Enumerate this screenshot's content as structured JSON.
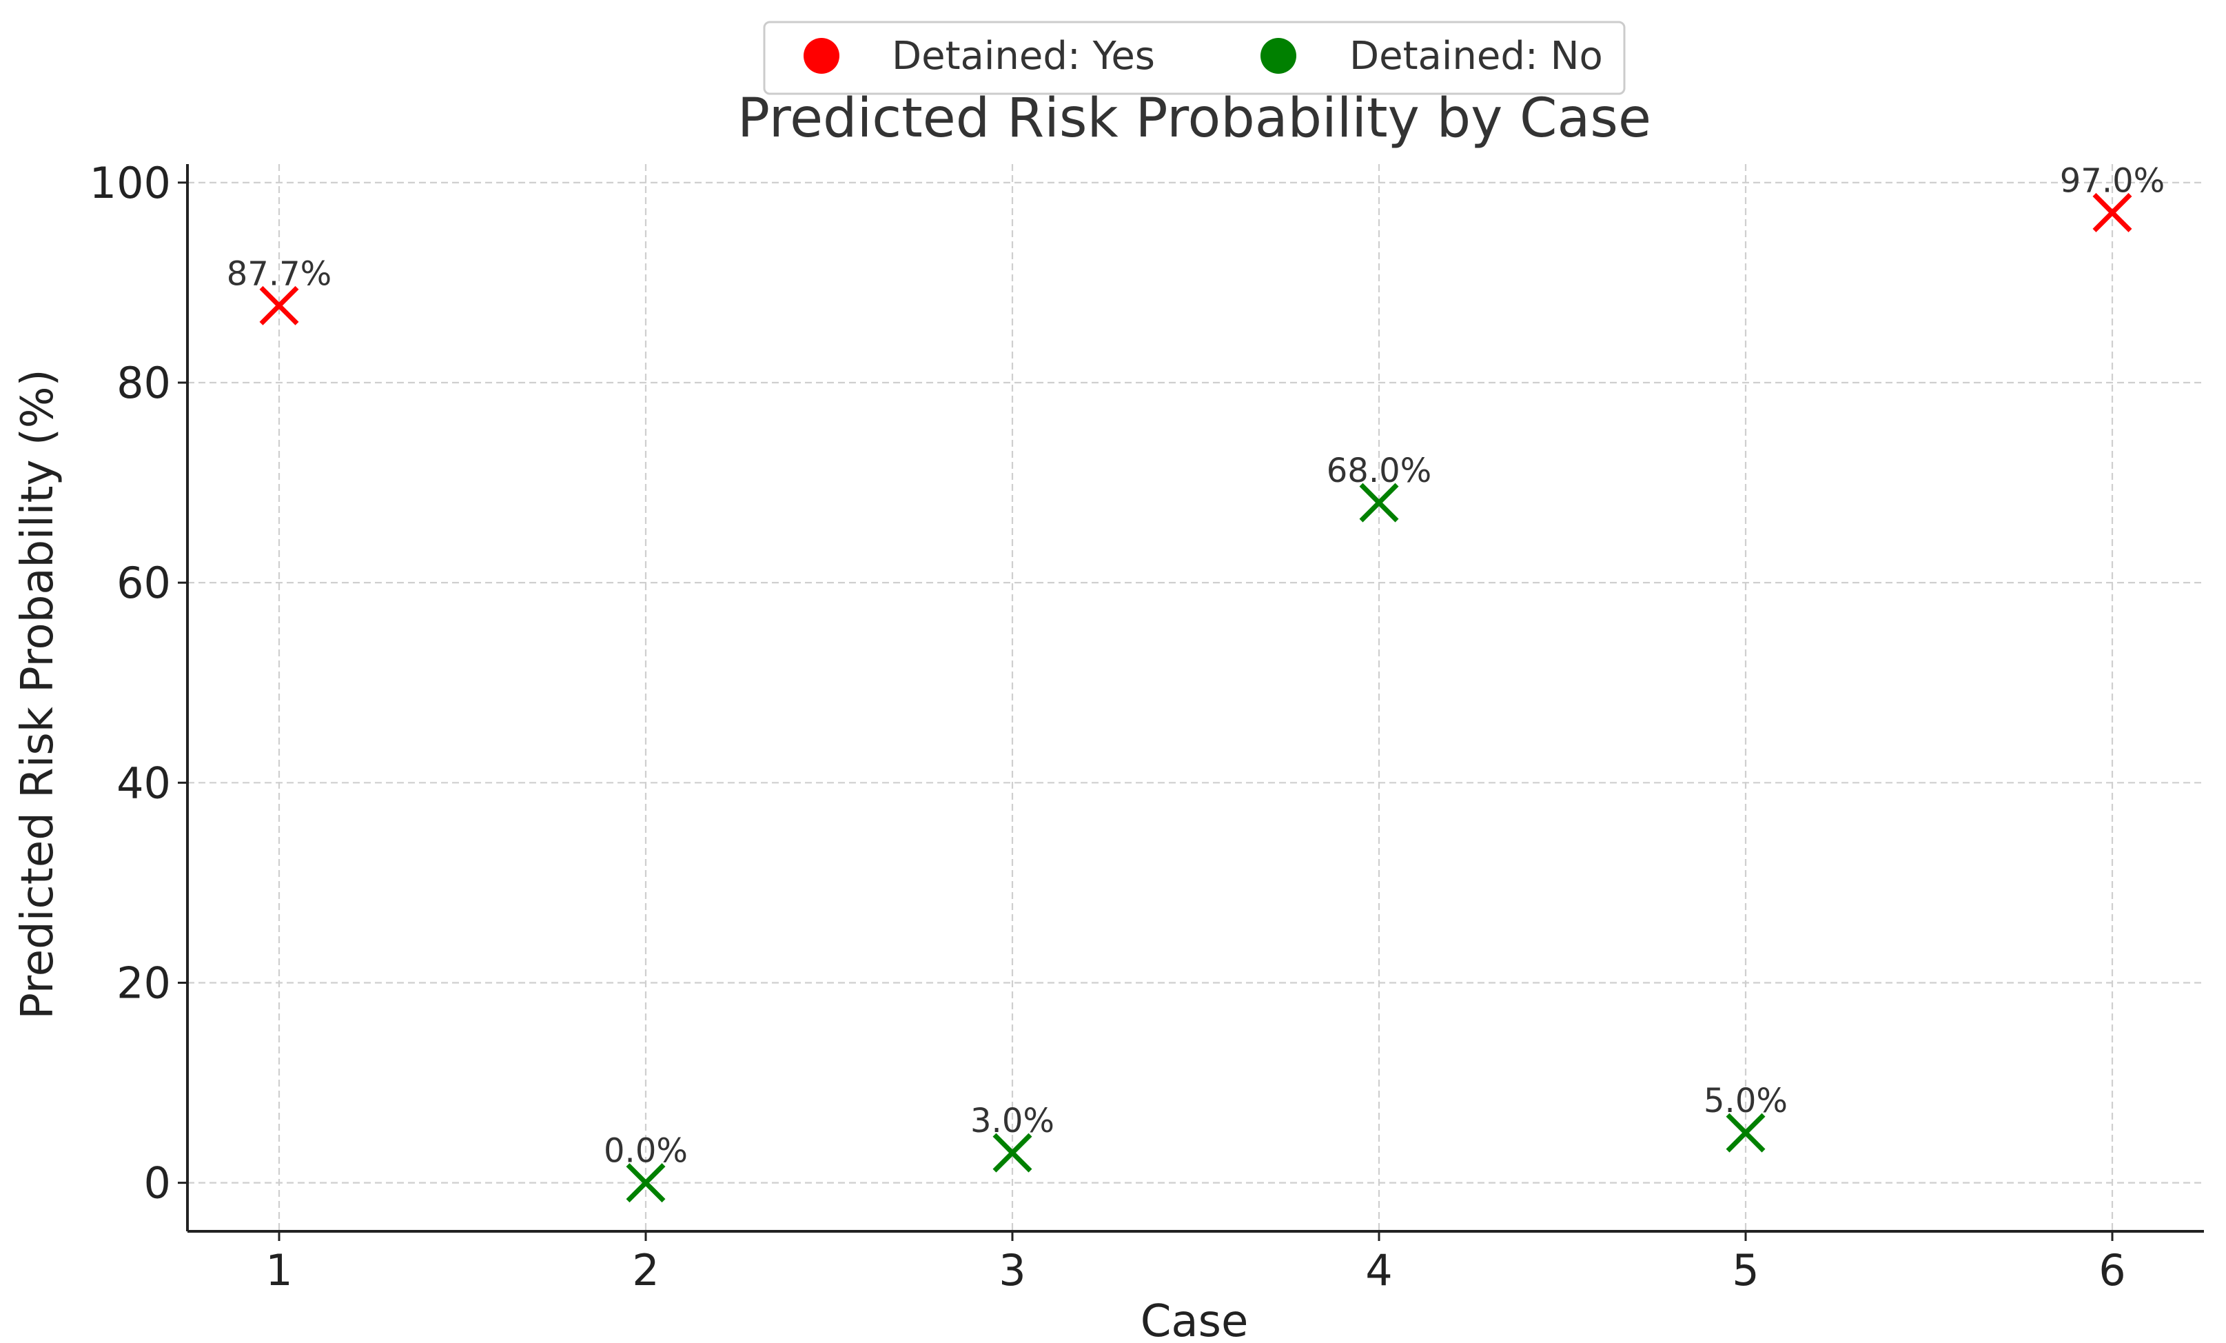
{
  "chart_data": {
    "type": "scatter",
    "title": "Predicted Risk Probability by Case",
    "xlabel": "Case",
    "ylabel": "Predicted Risk Probability (%)",
    "xlim": [
      0.75,
      6.25
    ],
    "ylim": [
      -4.85,
      101.85
    ],
    "x_ticks": [
      1,
      2,
      3,
      4,
      5,
      6
    ],
    "x_tick_labels": [
      "1",
      "2",
      "3",
      "4",
      "5",
      "6"
    ],
    "y_ticks": [
      0,
      20,
      40,
      60,
      80,
      100
    ],
    "y_tick_labels": [
      "0",
      "20",
      "40",
      "60",
      "80",
      "100"
    ],
    "grid": true,
    "legend_placement": "top-center",
    "legend": [
      {
        "label": "Detained: Yes",
        "color": "#ff0000"
      },
      {
        "label": "Detained: No",
        "color": "#008000"
      }
    ],
    "points": [
      {
        "x": 1,
        "y": 87.7,
        "label": "87.7%",
        "detained": "Yes",
        "color": "#ff0000"
      },
      {
        "x": 2,
        "y": 0.0,
        "label": "0.0%",
        "detained": "No",
        "color": "#008000"
      },
      {
        "x": 3,
        "y": 3.0,
        "label": "3.0%",
        "detained": "No",
        "color": "#008000"
      },
      {
        "x": 4,
        "y": 68.0,
        "label": "68.0%",
        "detained": "No",
        "color": "#008000"
      },
      {
        "x": 5,
        "y": 5.0,
        "label": "5.0%",
        "detained": "No",
        "color": "#008000"
      },
      {
        "x": 6,
        "y": 97.0,
        "label": "97.0%",
        "detained": "Yes",
        "color": "#ff0000"
      }
    ]
  }
}
